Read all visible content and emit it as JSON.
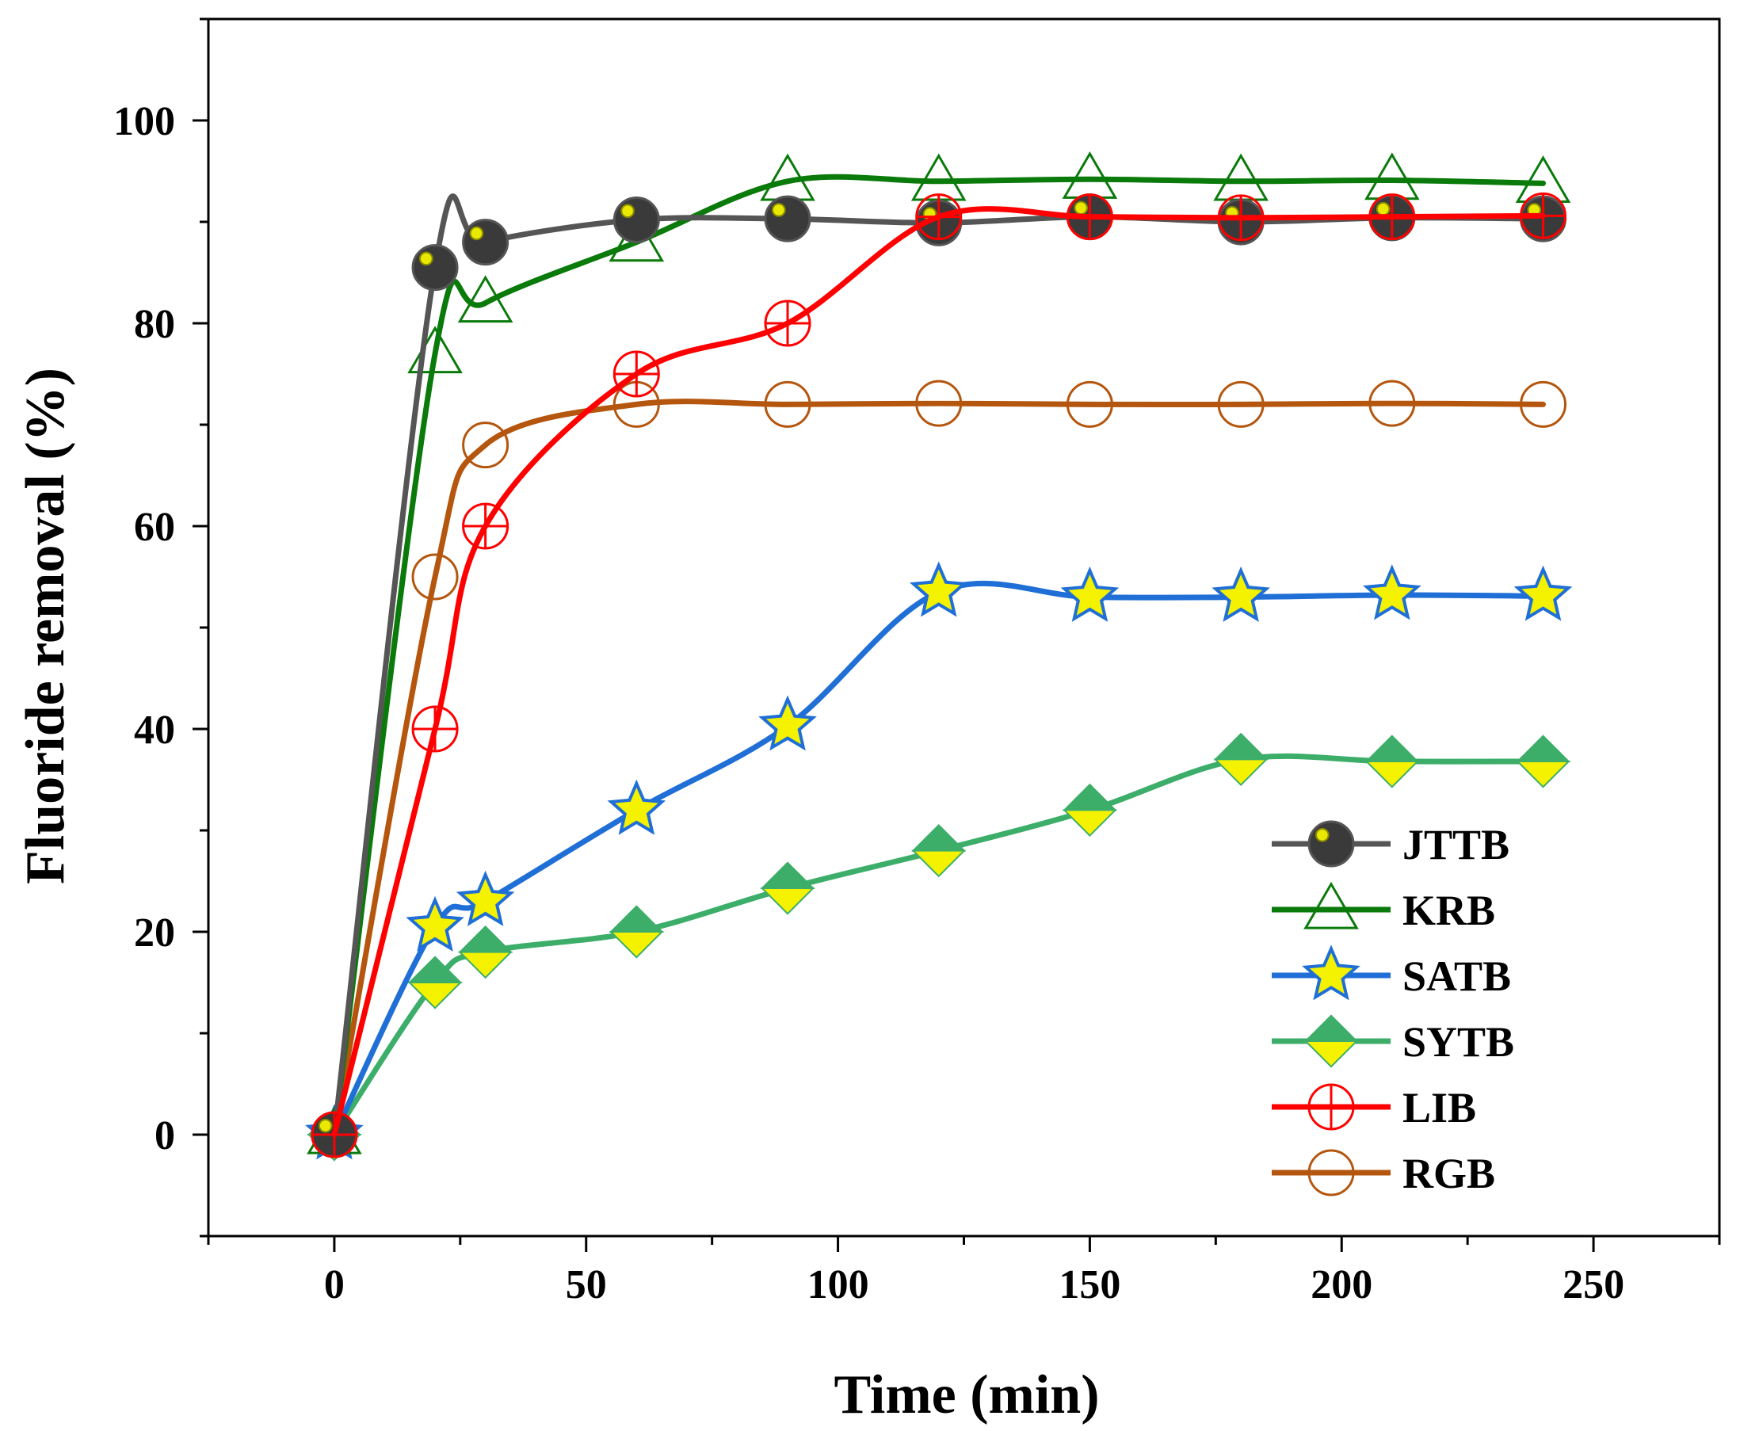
{
  "chart_data": {
    "type": "line",
    "title": "",
    "xlabel": "Time (min)",
    "ylabel": "Fluoride removal (%)",
    "xlim": [
      -25,
      275
    ],
    "ylim": [
      -10,
      110
    ],
    "xticks": [
      0,
      50,
      100,
      150,
      200,
      250
    ],
    "yticks": [
      0,
      20,
      40,
      60,
      80,
      100
    ],
    "grid": false,
    "legend_position": "bottom-right",
    "x": [
      0,
      20,
      30,
      60,
      90,
      120,
      150,
      180,
      210,
      240
    ],
    "series": [
      {
        "name": "JTTB",
        "color": "#555555",
        "marker": "filled-circle-dot",
        "values": [
          0,
          85.5,
          88,
          90.2,
          90.3,
          89.9,
          90.5,
          90,
          90.4,
          90.3
        ]
      },
      {
        "name": "KRB",
        "color": "#0a7a0a",
        "marker": "open-triangle",
        "values": [
          0,
          77,
          82,
          88,
          94,
          94,
          94.2,
          94,
          94.1,
          93.8
        ]
      },
      {
        "name": "SATB",
        "color": "#1f6fd6",
        "marker": "star",
        "values": [
          0,
          20.5,
          23,
          32,
          40.3,
          53.5,
          53,
          53,
          53.2,
          53.1
        ]
      },
      {
        "name": "SYTB",
        "color": "#3dae6a",
        "marker": "diamond",
        "values": [
          0,
          15,
          18,
          20,
          24.3,
          28,
          32,
          37,
          36.8,
          36.8
        ]
      },
      {
        "name": "LIB",
        "color": "#ff0000",
        "marker": "circle-plus",
        "values": [
          0,
          40,
          60,
          75,
          80,
          90.5,
          90.5,
          90.4,
          90.5,
          90.6
        ]
      },
      {
        "name": "RGB",
        "color": "#b5560f",
        "marker": "open-circle",
        "values": [
          0,
          55,
          68,
          72,
          72,
          72.1,
          72,
          72,
          72.1,
          72
        ]
      }
    ]
  }
}
